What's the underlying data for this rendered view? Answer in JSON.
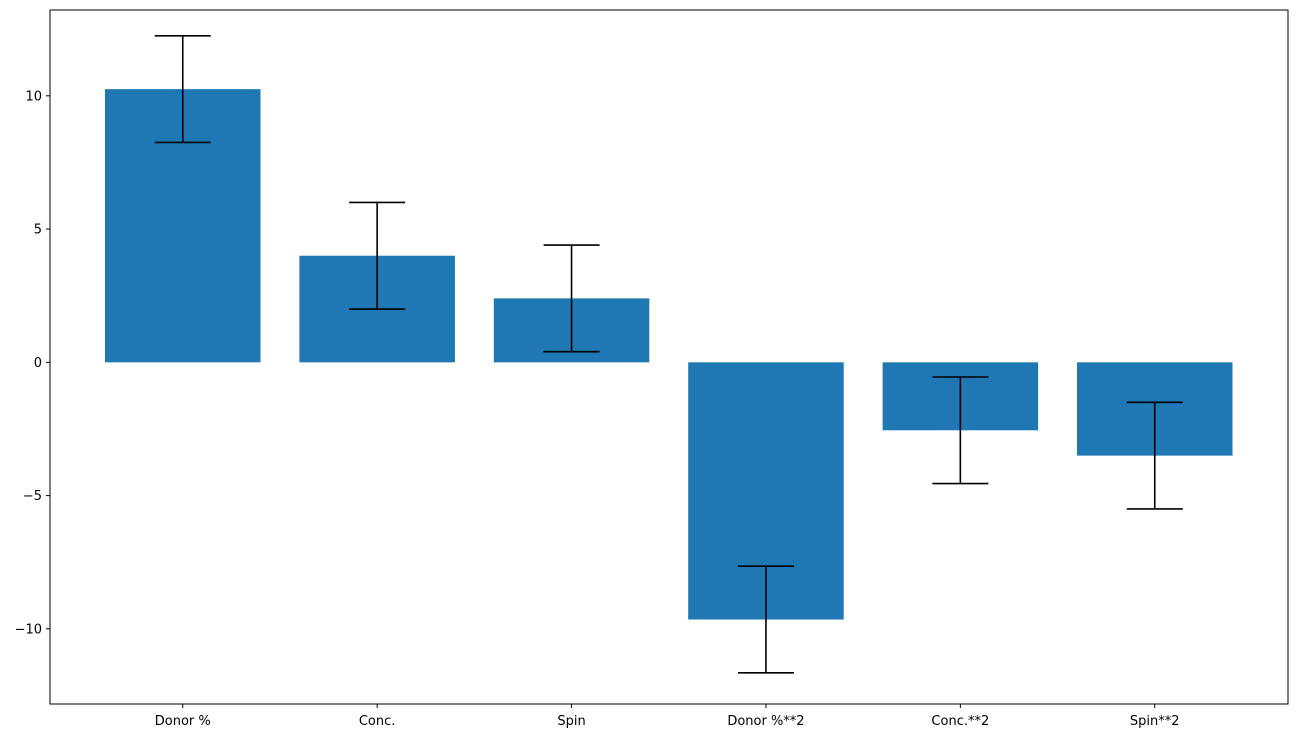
{
  "chart_data": {
    "type": "bar",
    "categories": [
      "Donor %",
      "Conc.",
      "Spin",
      "Donor %**2",
      "Conc.**2",
      "Spin**2"
    ],
    "values": [
      10.25,
      4.0,
      2.4,
      -9.65,
      -2.55,
      -3.5
    ],
    "errors": [
      2.0,
      2.0,
      2.0,
      2.0,
      2.0,
      2.0
    ],
    "title": "",
    "xlabel": "",
    "ylabel": "",
    "ylim": [
      -12.82,
      13.22
    ],
    "yticks": [
      -10,
      -5,
      0,
      5,
      10
    ],
    "ytick_labels": [
      "−10",
      "−5",
      "0",
      "5",
      "10"
    ],
    "grid": false,
    "legend": "none",
    "colors": {
      "bar": "#1f77b4",
      "errorbar": "#000000",
      "axis": "#000000"
    }
  }
}
